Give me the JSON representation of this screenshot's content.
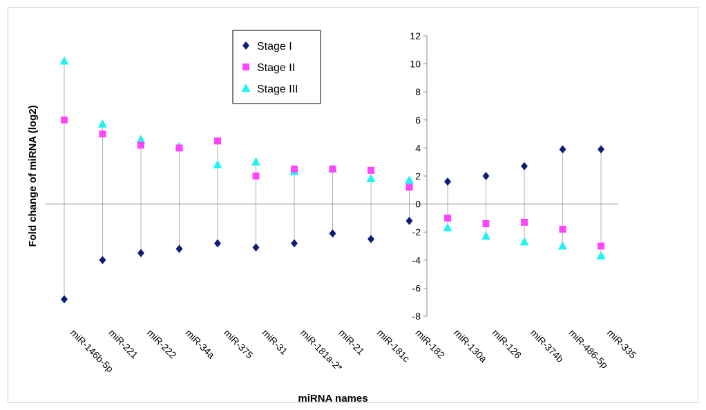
{
  "chart_data": {
    "type": "scatter",
    "title": "",
    "xlabel": "miRNA names",
    "ylabel": "Fold change of miRNA (log2)",
    "ylim": [
      -8,
      12
    ],
    "yticks": [
      -8,
      -6,
      -4,
      -2,
      0,
      2,
      4,
      6,
      8,
      10,
      12
    ],
    "grid": false,
    "legend_position": "top-center",
    "categories": [
      "miR-146b-5p",
      "miR-221",
      "miR-222",
      "miR-34a",
      "miR-375",
      "miR-31",
      "miR-181a-2*",
      "miR-21",
      "miR-181c",
      "miR-182",
      "miR-130a",
      "miR-126",
      "miR-374b",
      "miR-486-5p",
      "miR-335"
    ],
    "series": [
      {
        "name": "Stage I",
        "marker": "diamond",
        "color": "#0b1f7a",
        "values": [
          -6.8,
          -4.0,
          -3.5,
          -3.2,
          -2.8,
          -3.1,
          -2.8,
          -2.1,
          -2.5,
          -1.2,
          1.6,
          2.0,
          2.7,
          3.9,
          3.9
        ]
      },
      {
        "name": "Stage II",
        "marker": "square",
        "color": "#ff44ff",
        "values": [
          6.0,
          5.0,
          4.2,
          4.0,
          4.5,
          2.0,
          2.5,
          2.5,
          2.4,
          1.2,
          -1.0,
          -1.4,
          -1.3,
          -1.8,
          -3.0
        ]
      },
      {
        "name": "Stage III",
        "marker": "triangle",
        "color": "#22f2f2",
        "values": [
          10.2,
          5.7,
          4.6,
          4.1,
          2.8,
          3.0,
          2.3,
          2.5,
          1.8,
          1.7,
          -1.7,
          -2.3,
          -2.7,
          -3.0,
          -3.7
        ]
      }
    ]
  }
}
